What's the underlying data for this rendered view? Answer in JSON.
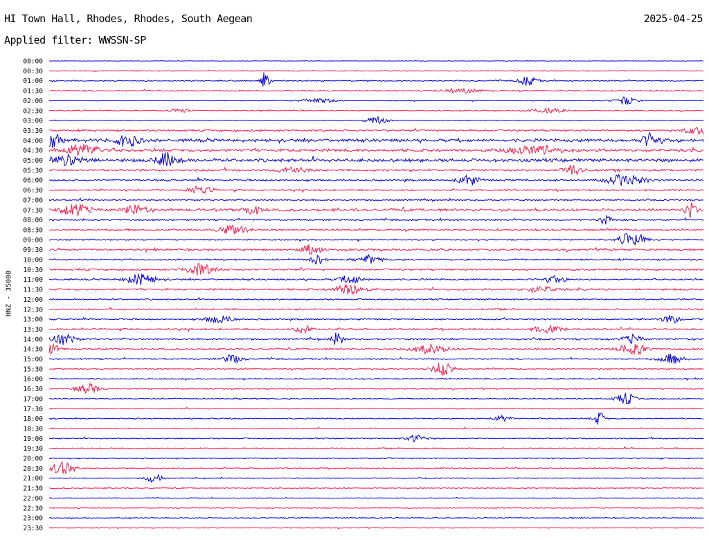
{
  "header": {
    "station": "HI Town Hall, Rhodes, Rhodes, South Aegean",
    "date": "2025-04-25",
    "filter": "Applied filter: WWSSN-SP"
  },
  "colors": {
    "odd_rows": "#0000e0",
    "even_rows": "#ff1a4a"
  },
  "chart_data": {
    "type": "line",
    "title": "HI Town Hall, Rhodes, Rhodes, South Aegean",
    "ylabel": "HNZ - 35000",
    "xlabel": "",
    "rows": [
      "00:00",
      "00:30",
      "01:00",
      "01:30",
      "02:00",
      "02:30",
      "03:00",
      "03:30",
      "04:00",
      "04:30",
      "05:00",
      "05:30",
      "06:00",
      "06:30",
      "07:00",
      "07:30",
      "08:00",
      "08:30",
      "09:00",
      "09:30",
      "10:00",
      "10:30",
      "11:00",
      "11:30",
      "12:00",
      "12:30",
      "13:00",
      "13:30",
      "14:00",
      "14:30",
      "15:00",
      "15:30",
      "16:00",
      "16:30",
      "17:00",
      "17:30",
      "18:00",
      "18:30",
      "19:00",
      "19:30",
      "20:00",
      "20:30",
      "21:00",
      "21:30",
      "22:00",
      "22:30",
      "23:00",
      "23:30"
    ],
    "noise_level": [
      0.4,
      0.8,
      1.0,
      1.0,
      0.6,
      0.9,
      0.6,
      1.6,
      2.6,
      2.4,
      2.8,
      1.8,
      1.6,
      1.4,
      1.2,
      2.2,
      1.4,
      1.6,
      1.2,
      1.8,
      1.4,
      1.6,
      1.4,
      1.6,
      1.2,
      1.4,
      1.2,
      1.4,
      1.4,
      1.4,
      1.2,
      1.2,
      1.0,
      1.0,
      1.0,
      1.0,
      1.0,
      1.0,
      1.0,
      1.0,
      0.8,
      1.0,
      0.8,
      0.8,
      0.6,
      0.8,
      0.8,
      0.7
    ],
    "events": [
      {
        "row": 2,
        "pos": 0.33,
        "amp": 14,
        "dur": 0.004
      },
      {
        "row": 2,
        "pos": 0.73,
        "amp": 6,
        "dur": 0.01
      },
      {
        "row": 3,
        "pos": 0.63,
        "amp": 3,
        "dur": 0.02
      },
      {
        "row": 4,
        "pos": 0.88,
        "amp": 6,
        "dur": 0.012
      },
      {
        "row": 4,
        "pos": 0.41,
        "amp": 3,
        "dur": 0.02
      },
      {
        "row": 5,
        "pos": 0.2,
        "amp": 3,
        "dur": 0.01
      },
      {
        "row": 5,
        "pos": 0.76,
        "amp": 3,
        "dur": 0.02
      },
      {
        "row": 6,
        "pos": 0.5,
        "amp": 6,
        "dur": 0.01
      },
      {
        "row": 7,
        "pos": 1.0,
        "amp": 5,
        "dur": 0.02
      },
      {
        "row": 8,
        "pos": 0.005,
        "amp": 12,
        "dur": 0.01
      },
      {
        "row": 8,
        "pos": 0.12,
        "amp": 9,
        "dur": 0.012
      },
      {
        "row": 8,
        "pos": 0.92,
        "amp": 10,
        "dur": 0.01
      },
      {
        "row": 9,
        "pos": 0.05,
        "amp": 8,
        "dur": 0.02
      },
      {
        "row": 9,
        "pos": 0.74,
        "amp": 5,
        "dur": 0.03
      },
      {
        "row": 10,
        "pos": 0.03,
        "amp": 6,
        "dur": 0.02
      },
      {
        "row": 10,
        "pos": 0.18,
        "amp": 10,
        "dur": 0.012
      },
      {
        "row": 11,
        "pos": 0.37,
        "amp": 5,
        "dur": 0.015
      },
      {
        "row": 11,
        "pos": 0.8,
        "amp": 8,
        "dur": 0.01
      },
      {
        "row": 12,
        "pos": 0.64,
        "amp": 8,
        "dur": 0.01
      },
      {
        "row": 12,
        "pos": 0.88,
        "amp": 7,
        "dur": 0.02
      },
      {
        "row": 13,
        "pos": 0.23,
        "amp": 6,
        "dur": 0.012
      },
      {
        "row": 15,
        "pos": 0.04,
        "amp": 8,
        "dur": 0.015
      },
      {
        "row": 15,
        "pos": 0.13,
        "amp": 7,
        "dur": 0.012
      },
      {
        "row": 15,
        "pos": 0.31,
        "amp": 6,
        "dur": 0.01
      },
      {
        "row": 15,
        "pos": 0.98,
        "amp": 10,
        "dur": 0.006
      },
      {
        "row": 16,
        "pos": 0.85,
        "amp": 8,
        "dur": 0.006
      },
      {
        "row": 17,
        "pos": 0.28,
        "amp": 6,
        "dur": 0.015
      },
      {
        "row": 18,
        "pos": 0.89,
        "amp": 12,
        "dur": 0.012
      },
      {
        "row": 19,
        "pos": 0.4,
        "amp": 7,
        "dur": 0.01
      },
      {
        "row": 20,
        "pos": 0.41,
        "amp": 6,
        "dur": 0.008
      },
      {
        "row": 20,
        "pos": 0.49,
        "amp": 6,
        "dur": 0.01
      },
      {
        "row": 21,
        "pos": 0.23,
        "amp": 8,
        "dur": 0.015
      },
      {
        "row": 22,
        "pos": 0.14,
        "amp": 8,
        "dur": 0.015
      },
      {
        "row": 22,
        "pos": 0.46,
        "amp": 6,
        "dur": 0.012
      },
      {
        "row": 22,
        "pos": 0.77,
        "amp": 5,
        "dur": 0.012
      },
      {
        "row": 23,
        "pos": 0.46,
        "amp": 8,
        "dur": 0.015
      },
      {
        "row": 23,
        "pos": 0.75,
        "amp": 4,
        "dur": 0.015
      },
      {
        "row": 26,
        "pos": 0.26,
        "amp": 5,
        "dur": 0.015
      },
      {
        "row": 26,
        "pos": 0.95,
        "amp": 6,
        "dur": 0.01
      },
      {
        "row": 27,
        "pos": 0.39,
        "amp": 8,
        "dur": 0.008
      },
      {
        "row": 27,
        "pos": 0.76,
        "amp": 5,
        "dur": 0.015
      },
      {
        "row": 28,
        "pos": 0.02,
        "amp": 8,
        "dur": 0.012
      },
      {
        "row": 28,
        "pos": 0.44,
        "amp": 9,
        "dur": 0.006
      },
      {
        "row": 28,
        "pos": 0.89,
        "amp": 6,
        "dur": 0.01
      },
      {
        "row": 29,
        "pos": 0.0,
        "amp": 8,
        "dur": 0.01
      },
      {
        "row": 29,
        "pos": 0.58,
        "amp": 6,
        "dur": 0.02
      },
      {
        "row": 29,
        "pos": 0.89,
        "amp": 8,
        "dur": 0.015
      },
      {
        "row": 30,
        "pos": 0.28,
        "amp": 6,
        "dur": 0.01
      },
      {
        "row": 30,
        "pos": 0.95,
        "amp": 7,
        "dur": 0.012
      },
      {
        "row": 31,
        "pos": 0.6,
        "amp": 10,
        "dur": 0.01
      },
      {
        "row": 33,
        "pos": 0.06,
        "amp": 7,
        "dur": 0.012
      },
      {
        "row": 34,
        "pos": 0.88,
        "amp": 8,
        "dur": 0.01
      },
      {
        "row": 36,
        "pos": 0.69,
        "amp": 4,
        "dur": 0.01
      },
      {
        "row": 36,
        "pos": 0.84,
        "amp": 9,
        "dur": 0.006
      },
      {
        "row": 38,
        "pos": 0.56,
        "amp": 5,
        "dur": 0.01
      },
      {
        "row": 41,
        "pos": 0.02,
        "amp": 9,
        "dur": 0.012
      },
      {
        "row": 42,
        "pos": 0.16,
        "amp": 7,
        "dur": 0.008
      }
    ]
  }
}
